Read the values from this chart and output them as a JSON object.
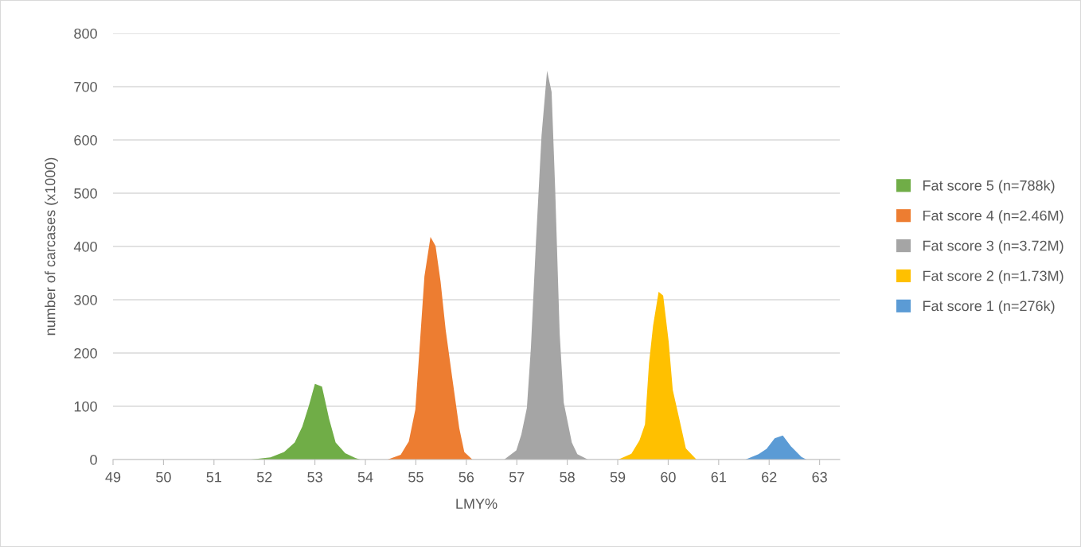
{
  "chart_data": {
    "type": "area",
    "xlabel": "LMY%",
    "ylabel": "number of carcases (x1000)",
    "xlim": [
      49,
      63.4
    ],
    "xticks": [
      49,
      50,
      51,
      52,
      53,
      54,
      55,
      56,
      57,
      58,
      59,
      60,
      61,
      62,
      63
    ],
    "ylim": [
      0,
      800
    ],
    "yticks": [
      0,
      100,
      200,
      300,
      400,
      500,
      600,
      700,
      800
    ],
    "grid": "y",
    "legend": "right",
    "series": [
      {
        "name": "Fat score 5 (n=788k)",
        "color": "#70ad47",
        "x": [
          51.73,
          52.12,
          52.39,
          52.6,
          52.75,
          52.88,
          53.0,
          53.14,
          53.28,
          53.41,
          53.6,
          53.8,
          53.9
        ],
        "values": [
          0,
          4,
          14,
          32,
          62,
          101,
          142,
          137,
          77,
          32,
          12,
          3,
          0
        ]
      },
      {
        "name": "Fat score 4 (n=2.46M)",
        "color": "#ed7d31",
        "x": [
          54.44,
          54.7,
          54.86,
          54.99,
          55.07,
          55.17,
          55.29,
          55.39,
          55.49,
          55.59,
          55.72,
          55.86,
          55.96,
          56.12
        ],
        "values": [
          0,
          9,
          34,
          94,
          204,
          344,
          418,
          401,
          334,
          244,
          154,
          59,
          14,
          0
        ]
      },
      {
        "name": "Fat score 3 (n=3.72M)",
        "color": "#a5a5a5",
        "x": [
          56.75,
          56.99,
          57.09,
          57.2,
          57.28,
          57.38,
          57.49,
          57.6,
          57.69,
          57.76,
          57.85,
          57.93,
          58.09,
          58.2,
          58.41
        ],
        "values": [
          0,
          17,
          47,
          97,
          211,
          409,
          608,
          730,
          690,
          509,
          236,
          107,
          32,
          10,
          0
        ]
      },
      {
        "name": "Fat score 2 (n=1.73M)",
        "color": "#ffc000",
        "x": [
          59.01,
          59.27,
          59.43,
          59.54,
          59.62,
          59.7,
          59.81,
          59.9,
          60.01,
          60.09,
          60.22,
          60.35,
          60.56
        ],
        "values": [
          0,
          11,
          36,
          66,
          181,
          251,
          315,
          308,
          221,
          131,
          76,
          21,
          0
        ]
      },
      {
        "name": "Fat score 1 (n=276k)",
        "color": "#5b9bd5",
        "x": [
          61.53,
          61.79,
          61.95,
          62.11,
          62.27,
          62.43,
          62.64,
          62.74
        ],
        "values": [
          0,
          10,
          20,
          40,
          45,
          25,
          5,
          0
        ]
      }
    ]
  }
}
